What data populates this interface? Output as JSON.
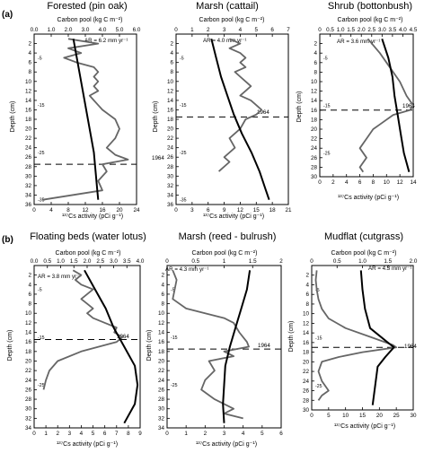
{
  "panel_labels": [
    "(a)",
    "(b)"
  ],
  "chart_data": [
    {
      "type": "line",
      "title": "Forested (pin oak)",
      "top_axis_label": "Carbon pool  (kg C m⁻²)",
      "bottom_axis_label": "¹³⁷Cs activity  (pCi g⁻¹)",
      "ylabel": "Depth (cm)",
      "ylim": [
        0,
        36
      ],
      "yticks": [
        2,
        4,
        6,
        8,
        10,
        12,
        14,
        16,
        18,
        20,
        22,
        24,
        26,
        28,
        30,
        32,
        34,
        36
      ],
      "top_ticks": [
        "0.0",
        "1.0",
        "2.0",
        "3.0",
        "4.0",
        "5.0",
        "6.0"
      ],
      "top_range": [
        0,
        6
      ],
      "bottom_ticks": [
        "0",
        "4",
        "8",
        "12",
        "16",
        "20",
        "24"
      ],
      "bottom_range": [
        0,
        24
      ],
      "accretion_label": "AR = 6.2 mm yr⁻¹",
      "marker_label": "1964",
      "marker_depth": 27.5,
      "age_labels": [
        {
          "text": "5",
          "depth": 5
        },
        {
          "text": "15",
          "depth": 15
        },
        {
          "text": "25",
          "depth": 25
        },
        {
          "text": "35",
          "depth": 35
        }
      ],
      "series": [
        {
          "values": [
            [
              2.3,
              1
            ],
            [
              2.5,
              5
            ],
            [
              2.7,
              9
            ],
            [
              2.9,
              13
            ],
            [
              3.1,
              17
            ],
            [
              3.3,
              21
            ],
            [
              3.5,
              25
            ],
            [
              3.6,
              29
            ],
            [
              3.7,
              33
            ],
            [
              3.75,
              35
            ]
          ]
        },
        {
          "values": [
            [
              8,
              1
            ],
            [
              15,
              2
            ],
            [
              8,
              3
            ],
            [
              11,
              4
            ],
            [
              7,
              5
            ],
            [
              10,
              6
            ],
            [
              14,
              7
            ],
            [
              15,
              8
            ],
            [
              14,
              9
            ],
            [
              15,
              10
            ],
            [
              14,
              11
            ],
            [
              15,
              12
            ],
            [
              13,
              13
            ],
            [
              14,
              14
            ],
            [
              15,
              15
            ],
            [
              16,
              16
            ],
            [
              19,
              18
            ],
            [
              20,
              20
            ],
            [
              19,
              22
            ],
            [
              17,
              24
            ],
            [
              19,
              25.5
            ],
            [
              22,
              26.5
            ],
            [
              16,
              27.5
            ],
            [
              17,
              29
            ],
            [
              15,
              31
            ],
            [
              16,
              33
            ],
            [
              2,
              35
            ]
          ]
        }
      ]
    },
    {
      "type": "line",
      "title": "Marsh (cattail)",
      "top_axis_label": "Carbon pool  (kg C m⁻²)",
      "bottom_axis_label": "¹³⁷Cs activity  (pCi g⁻¹)",
      "ylabel": "Depth (cm)",
      "ylim": [
        0,
        36
      ],
      "yticks": [
        2,
        4,
        6,
        8,
        10,
        12,
        14,
        16,
        18,
        20,
        22,
        24,
        26,
        28,
        30,
        32,
        34,
        36
      ],
      "top_ticks": [
        "0",
        "1",
        "2",
        "3",
        "4",
        "5",
        "6",
        "7"
      ],
      "top_range": [
        0,
        7
      ],
      "bottom_ticks": [
        "0",
        "3",
        "6",
        "9",
        "12",
        "15",
        "18",
        "21"
      ],
      "bottom_range": [
        0,
        21
      ],
      "accretion_label": "AR = 4.0 mm yr⁻¹",
      "marker_label": "1964",
      "marker_depth": 17.5,
      "age_labels": [
        {
          "text": "5",
          "depth": 5
        },
        {
          "text": "15",
          "depth": 15
        },
        {
          "text": "25",
          "depth": 25
        },
        {
          "text": "35",
          "depth": 35
        }
      ],
      "series": [
        {
          "values": [
            [
              2.2,
              1
            ],
            [
              2.5,
              5
            ],
            [
              2.8,
              9
            ],
            [
              3.2,
              13
            ],
            [
              3.6,
              17
            ],
            [
              4.1,
              21
            ],
            [
              4.7,
              25
            ],
            [
              5.2,
              29
            ],
            [
              5.6,
              33
            ],
            [
              5.8,
              35
            ]
          ]
        },
        {
          "values": [
            [
              10,
              1
            ],
            [
              12,
              2
            ],
            [
              10,
              3
            ],
            [
              12,
              4
            ],
            [
              13,
              5
            ],
            [
              12,
              6
            ],
            [
              13,
              7
            ],
            [
              11,
              8
            ],
            [
              12,
              9
            ],
            [
              13,
              10
            ],
            [
              14,
              11
            ],
            [
              13,
              12
            ],
            [
              12,
              13
            ],
            [
              14,
              14
            ],
            [
              15,
              15
            ],
            [
              16,
              16
            ],
            [
              15,
              17
            ],
            [
              13,
              18
            ],
            [
              12,
              20
            ],
            [
              10,
              22
            ],
            [
              11,
              24
            ],
            [
              9,
              26
            ],
            [
              10,
              27
            ],
            [
              8,
              29
            ]
          ]
        }
      ]
    },
    {
      "type": "line",
      "title": "Shrub (bottonbush)",
      "top_axis_label": "Carbon pool  (kg C m⁻²)",
      "bottom_axis_label": "¹³⁷Cs activity  (pCi g⁻¹)",
      "ylabel": "Depth (cm)",
      "ylim": [
        0,
        30
      ],
      "yticks": [
        2,
        4,
        6,
        8,
        10,
        12,
        14,
        16,
        18,
        20,
        22,
        24,
        26,
        28,
        30
      ],
      "top_ticks": [
        "0",
        "0.5",
        "1.0",
        "1.5",
        "2.0",
        "2.5",
        "3.0",
        "3.5",
        "4.0",
        "4.5"
      ],
      "top_range": [
        0,
        4.5
      ],
      "bottom_ticks": [
        "0",
        "2",
        "4",
        "6",
        "8",
        "10",
        "12",
        "14"
      ],
      "bottom_range": [
        0,
        14
      ],
      "accretion_label": "AR = 3.6 mm yr⁻¹",
      "marker_label": "1964",
      "marker_depth": 16,
      "age_labels": [
        {
          "text": "5",
          "depth": 5
        },
        {
          "text": "15",
          "depth": 15
        },
        {
          "text": "25",
          "depth": 25
        }
      ],
      "series": [
        {
          "values": [
            [
              3.0,
              1
            ],
            [
              3.3,
              5
            ],
            [
              3.5,
              9
            ],
            [
              3.6,
              13
            ],
            [
              3.75,
              17
            ],
            [
              3.9,
              21
            ],
            [
              4.05,
              25
            ],
            [
              4.3,
              29
            ]
          ]
        },
        {
          "values": [
            [
              7.2,
              1
            ],
            [
              9,
              4
            ],
            [
              10,
              6
            ],
            [
              11,
              8
            ],
            [
              12,
              10
            ],
            [
              13,
              13
            ],
            [
              14,
              15
            ],
            [
              13.5,
              16
            ],
            [
              11,
              17
            ],
            [
              9,
              19
            ],
            [
              8,
              20
            ],
            [
              7,
              22
            ],
            [
              6,
              24
            ],
            [
              7,
              26
            ],
            [
              6,
              28
            ],
            [
              6.5,
              29
            ]
          ]
        }
      ]
    },
    {
      "type": "line",
      "title": "Floating beds (water lotus)",
      "top_axis_label": "Carbon pool  (kg C m⁻²)",
      "bottom_axis_label": "¹³⁷Cs activity  (pCi g⁻¹)",
      "ylabel": "Depth (cm)",
      "ylim": [
        0,
        34
      ],
      "yticks": [
        2,
        4,
        6,
        8,
        10,
        12,
        14,
        16,
        18,
        20,
        22,
        24,
        26,
        28,
        30,
        32,
        34
      ],
      "top_ticks": [
        "0.0",
        "0.5",
        "1.0",
        "1.5",
        "2.0",
        "2.5",
        "3.0",
        "3.5",
        "4.0"
      ],
      "top_range": [
        0,
        4
      ],
      "bottom_ticks": [
        "0",
        "1",
        "2",
        "3",
        "4",
        "5",
        "6",
        "7",
        "8",
        "9"
      ],
      "bottom_range": [
        0,
        9
      ],
      "accretion_label": "AR = 3.8 mm yr⁻¹",
      "marker_label": "1964",
      "marker_depth": 15.5,
      "age_labels": [
        {
          "text": "5",
          "depth": 5
        },
        {
          "text": "15",
          "depth": 15
        },
        {
          "text": "25",
          "depth": 25
        }
      ],
      "series": [
        {
          "values": [
            [
              1.9,
              1
            ],
            [
              2.3,
              5
            ],
            [
              2.7,
              9
            ],
            [
              3.0,
              13
            ],
            [
              3.4,
              17
            ],
            [
              3.8,
              21
            ],
            [
              3.9,
              25
            ],
            [
              3.8,
              29
            ],
            [
              3.4,
              33
            ]
          ]
        },
        {
          "values": [
            [
              3.3,
              1
            ],
            [
              4,
              2
            ],
            [
              3.5,
              3
            ],
            [
              4,
              4
            ],
            [
              5,
              5
            ],
            [
              4.5,
              6
            ],
            [
              4,
              7
            ],
            [
              4.5,
              8
            ],
            [
              5,
              9
            ],
            [
              4.5,
              10
            ],
            [
              5,
              11
            ],
            [
              6,
              12
            ],
            [
              7,
              13
            ],
            [
              6.8,
              14
            ],
            [
              7.5,
              15
            ],
            [
              7,
              16
            ],
            [
              4,
              18
            ],
            [
              2,
              20
            ],
            [
              1.3,
              22
            ],
            [
              1,
              24
            ],
            [
              0.8,
              26
            ]
          ]
        }
      ]
    },
    {
      "type": "line",
      "title": "Marsh (reed - bulrush)",
      "top_axis_label": "Carbon pool  (kg C m⁻²)",
      "bottom_axis_label": "¹³⁷Cs activity  (pCi g⁻¹)",
      "ylabel": "Depth (cm)",
      "ylim": [
        0,
        34
      ],
      "yticks": [
        2,
        4,
        6,
        8,
        10,
        12,
        14,
        16,
        18,
        20,
        22,
        24,
        26,
        28,
        30,
        32,
        34
      ],
      "top_ticks": [
        "0",
        "0.5",
        "1",
        "1.5",
        "2"
      ],
      "top_range": [
        0,
        2
      ],
      "bottom_ticks": [
        "0",
        "1",
        "2",
        "3",
        "4",
        "5",
        "6"
      ],
      "bottom_range": [
        0,
        6
      ],
      "accretion_label": "AR = 4.3 mm yr⁻¹",
      "marker_label": "1964",
      "marker_depth": 17.5,
      "age_labels": [
        {
          "text": "5",
          "depth": 5
        },
        {
          "text": "15",
          "depth": 15
        },
        {
          "text": "25",
          "depth": 25
        }
      ],
      "series": [
        {
          "values": [
            [
              1.45,
              1
            ],
            [
              1.4,
              5
            ],
            [
              1.3,
              9
            ],
            [
              1.2,
              13
            ],
            [
              1.1,
              17
            ],
            [
              1.02,
              21
            ],
            [
              1.0,
              25
            ],
            [
              0.98,
              29
            ],
            [
              1.0,
              33
            ]
          ]
        },
        {
          "values": [
            [
              0.3,
              1
            ],
            [
              0.5,
              3
            ],
            [
              0.4,
              5
            ],
            [
              0.3,
              7
            ],
            [
              1,
              9
            ],
            [
              2,
              10
            ],
            [
              3,
              11
            ],
            [
              3.5,
              12
            ],
            [
              3.8,
              14
            ],
            [
              4,
              15
            ],
            [
              4.2,
              16
            ],
            [
              4.3,
              17
            ],
            [
              3,
              18
            ],
            [
              3.5,
              19
            ],
            [
              2.2,
              20
            ],
            [
              2.5,
              22
            ],
            [
              2,
              24
            ],
            [
              1.8,
              26
            ],
            [
              2.5,
              28
            ],
            [
              3.5,
              30
            ],
            [
              3,
              31
            ],
            [
              4,
              32
            ]
          ]
        }
      ]
    },
    {
      "type": "line",
      "title": "Mudflat (cutgrass)",
      "top_axis_label": "Carbon pool  (kg C m⁻²)",
      "bottom_axis_label": "¹³⁷Cs activity  (pCi g⁻¹)",
      "ylabel": "Depth (cm)",
      "ylim": [
        0,
        30
      ],
      "yticks": [
        2,
        4,
        6,
        8,
        10,
        12,
        14,
        16,
        18,
        20,
        22,
        24,
        26,
        28,
        30
      ],
      "top_ticks": [
        "0",
        "0.5",
        "1.0",
        "1.5",
        "2.0"
      ],
      "top_range": [
        0,
        2
      ],
      "bottom_ticks": [
        "0",
        "5",
        "10",
        "15",
        "20",
        "25",
        "30"
      ],
      "bottom_range": [
        0,
        30
      ],
      "accretion_label": "AR = 4.3 mm yr⁻¹",
      "marker_label": "1964",
      "marker_depth": 17,
      "age_labels": [
        {
          "text": "5",
          "depth": 5
        },
        {
          "text": "15",
          "depth": 15
        },
        {
          "text": "25",
          "depth": 25
        }
      ],
      "series": [
        {
          "values": [
            [
              0.97,
              1
            ],
            [
              1.0,
              5
            ],
            [
              1.05,
              9
            ],
            [
              1.15,
              13
            ],
            [
              1.5,
              16
            ],
            [
              1.62,
              17
            ],
            [
              1.45,
              19
            ],
            [
              1.3,
              21
            ],
            [
              1.25,
              25
            ],
            [
              1.2,
              29
            ]
          ]
        },
        {
          "values": [
            [
              1.5,
              1
            ],
            [
              1.2,
              3
            ],
            [
              1.5,
              5
            ],
            [
              2,
              7
            ],
            [
              3,
              9
            ],
            [
              5,
              11
            ],
            [
              10,
              13
            ],
            [
              18,
              15
            ],
            [
              24,
              16.5
            ],
            [
              25,
              17
            ],
            [
              15,
              18
            ],
            [
              8,
              19
            ],
            [
              3,
              20
            ],
            [
              2,
              22
            ],
            [
              3,
              24
            ],
            [
              5,
              26
            ],
            [
              3,
              27
            ],
            [
              2,
              28
            ]
          ]
        }
      ]
    }
  ]
}
